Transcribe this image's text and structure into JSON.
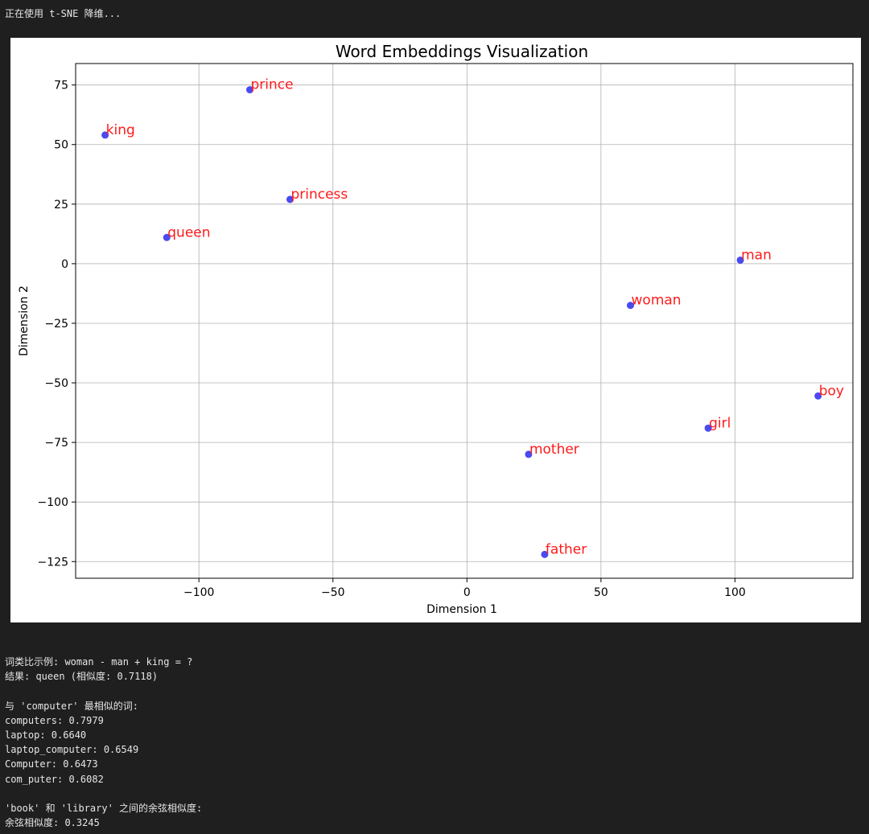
{
  "status_text": "正在使用 t-SNE 降维...",
  "chart_data": {
    "type": "scatter",
    "title": "Word Embeddings Visualization",
    "xlabel": "Dimension 1",
    "ylabel": "Dimension 2",
    "xlim": [
      -146,
      144
    ],
    "ylim": [
      -132,
      84
    ],
    "xticks": [
      -100,
      -50,
      0,
      50,
      100
    ],
    "yticks": [
      75,
      50,
      25,
      0,
      -25,
      -50,
      -75,
      -100,
      -125
    ],
    "grid": true,
    "point_color": "#3b3bf0",
    "label_color": "#ff1a1a",
    "points": [
      {
        "label": "prince",
        "x": -81,
        "y": 73
      },
      {
        "label": "king",
        "x": -135,
        "y": 54
      },
      {
        "label": "princess",
        "x": -66,
        "y": 27
      },
      {
        "label": "queen",
        "x": -112,
        "y": 11
      },
      {
        "label": "man",
        "x": 102,
        "y": 1.5
      },
      {
        "label": "woman",
        "x": 61,
        "y": -17.5
      },
      {
        "label": "boy",
        "x": 131,
        "y": -55.5
      },
      {
        "label": "girl",
        "x": 90,
        "y": -69
      },
      {
        "label": "mother",
        "x": 23,
        "y": -80
      },
      {
        "label": "father",
        "x": 29,
        "y": -122
      }
    ]
  },
  "output_lines": [
    "词类比示例: woman - man + king = ?",
    "结果: queen (相似度: 0.7118)",
    "",
    "与 'computer' 最相似的词:",
    "computers: 0.7979",
    "laptop: 0.6640",
    "laptop_computer: 0.6549",
    "Computer: 0.6473",
    "com_puter: 0.6082",
    "",
    "'book' 和 'library' 之间的余弦相似度:",
    "余弦相似度: 0.3245"
  ]
}
